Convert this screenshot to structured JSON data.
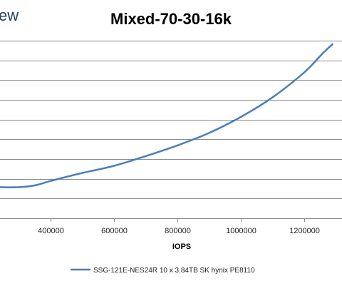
{
  "logo_text": "ew",
  "chart_data": {
    "type": "line",
    "title": "Mixed-70-30-16k",
    "xlabel": "IOPS",
    "ylabel": "",
    "x_ticks": [
      400000,
      600000,
      800000,
      1000000,
      1200000
    ],
    "x_tick_labels": [
      "400000",
      "600000",
      "800000",
      "1000000",
      "1200000"
    ],
    "xlim": [
      240000,
      1320000
    ],
    "ylim": [
      0,
      10
    ],
    "gridlines": "horizontal",
    "legend_position": "bottom",
    "series": [
      {
        "name": "SSG-121E-NES24R 10 x 3.84TB SK hynix PE8110",
        "color": "#4a7ebb",
        "points": [
          [
            240000,
            1.75
          ],
          [
            300000,
            1.75
          ],
          [
            350000,
            1.85
          ],
          [
            400000,
            2.1
          ],
          [
            500000,
            2.55
          ],
          [
            600000,
            2.95
          ],
          [
            700000,
            3.5
          ],
          [
            800000,
            4.1
          ],
          [
            900000,
            4.8
          ],
          [
            1000000,
            5.7
          ],
          [
            1100000,
            6.8
          ],
          [
            1200000,
            8.2
          ],
          [
            1260000,
            9.3
          ],
          [
            1290000,
            9.8
          ]
        ]
      }
    ]
  }
}
